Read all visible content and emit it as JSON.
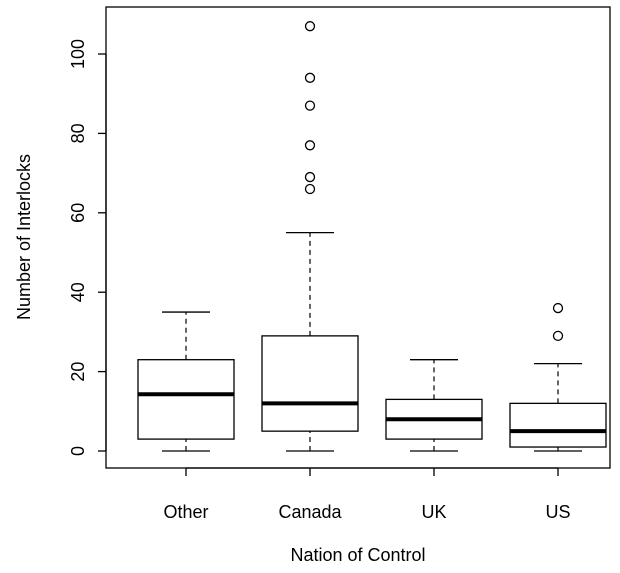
{
  "chart_data": {
    "type": "boxplot",
    "xlabel": "Nation of Control",
    "ylabel": "Number of Interlocks",
    "ylim": [
      0,
      110
    ],
    "yticks": [
      0,
      20,
      40,
      60,
      80,
      100
    ],
    "grid": false,
    "categories": [
      "Other",
      "Canada",
      "UK",
      "US"
    ],
    "boxes": [
      {
        "category": "Other",
        "min": 0,
        "q1": 3,
        "median": 14.3,
        "q3": 23,
        "max": 35,
        "outliers": []
      },
      {
        "category": "Canada",
        "min": 0,
        "q1": 5,
        "median": 12,
        "q3": 29,
        "max": 55,
        "outliers": [
          66,
          69,
          77,
          87,
          94,
          107
        ]
      },
      {
        "category": "UK",
        "min": 0,
        "q1": 3,
        "median": 8,
        "q3": 13,
        "max": 23,
        "outliers": []
      },
      {
        "category": "US",
        "min": 0,
        "q1": 1,
        "median": 5,
        "q3": 12,
        "max": 22,
        "outliers": [
          29,
          36
        ]
      }
    ]
  }
}
